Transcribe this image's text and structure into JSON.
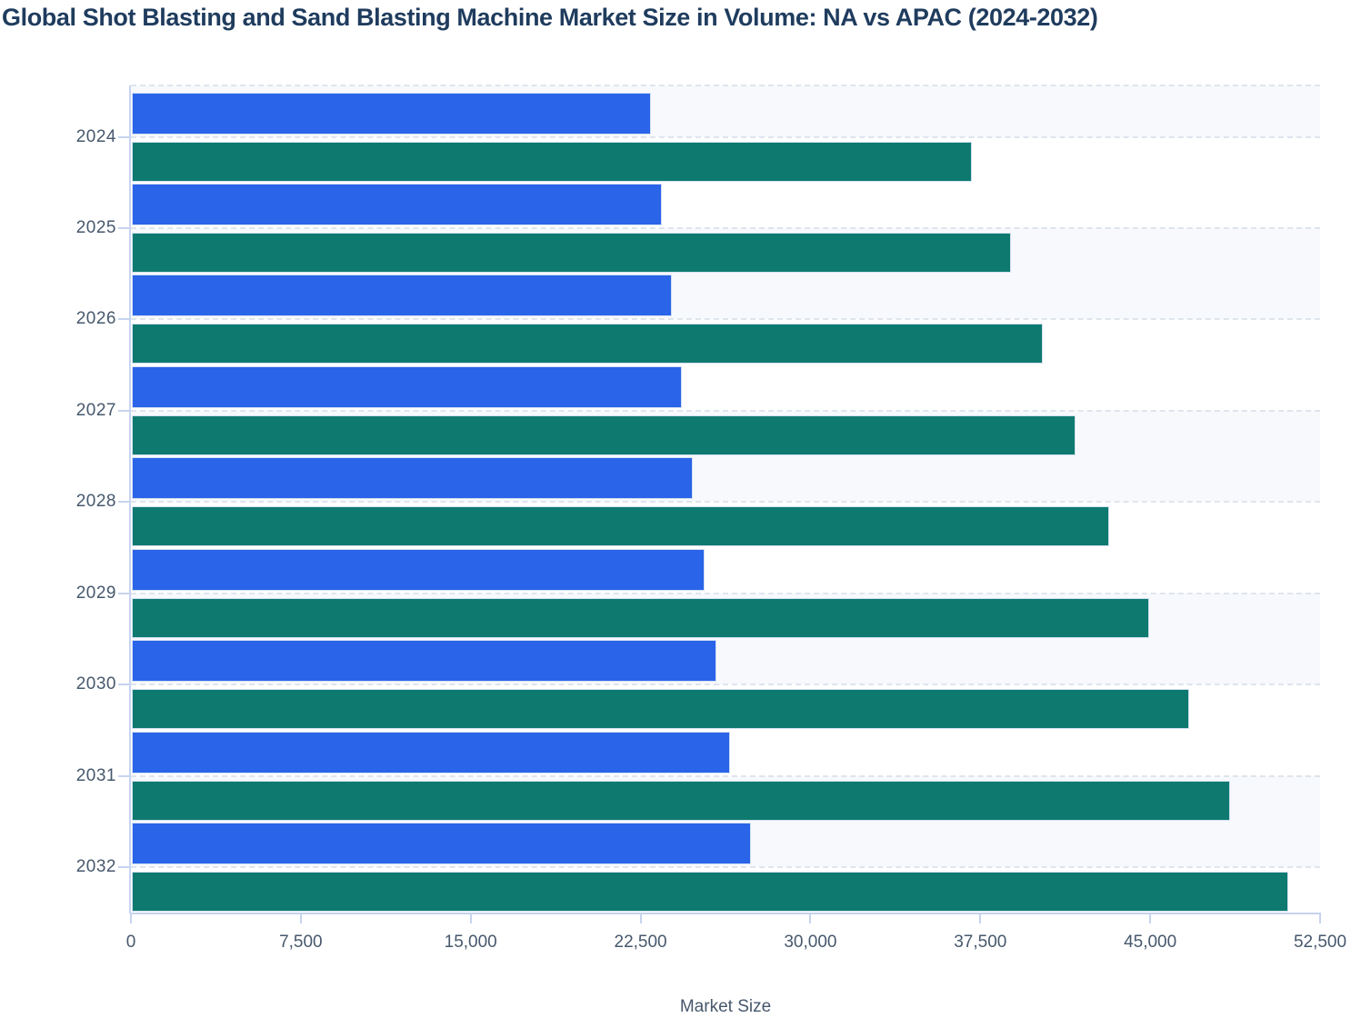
{
  "chart_data": {
    "type": "bar",
    "orientation": "horizontal",
    "title": "Global Shot Blasting and Sand Blasting Machine Market Size in Volume: NA vs APAC (2024-2032)",
    "xlabel": "Market Size",
    "categories": [
      "2024",
      "2025",
      "2026",
      "2027",
      "2028",
      "2029",
      "2030",
      "2031",
      "2032"
    ],
    "series": [
      {
        "name": "NA",
        "color": "#2a64e8",
        "values": [
          22900,
          23400,
          23850,
          24300,
          24750,
          25300,
          25800,
          26400,
          27350
        ]
      },
      {
        "name": "APAC",
        "color": "#0e7a6f",
        "values": [
          37100,
          38800,
          40200,
          41650,
          43150,
          44900,
          46700,
          48500,
          51050
        ]
      }
    ],
    "x_ticks": [
      "0",
      "7,500",
      "15,000",
      "22,500",
      "30,000",
      "37,500",
      "45,000",
      "52,500"
    ],
    "xlim": [
      0,
      52500
    ],
    "grid": "horizontal-dashed",
    "legend_position": "none",
    "row_shading": "alternating-zebra-bands"
  },
  "colors": {
    "na_bar": "#2a64e8",
    "apac_bar": "#0e7a6f",
    "title_text": "#1f3c5e",
    "axis_text": "#47586d",
    "stripe": "#f7f9fc",
    "gridline": "#dfe5ed",
    "axis_line": "#c7d4ef"
  }
}
